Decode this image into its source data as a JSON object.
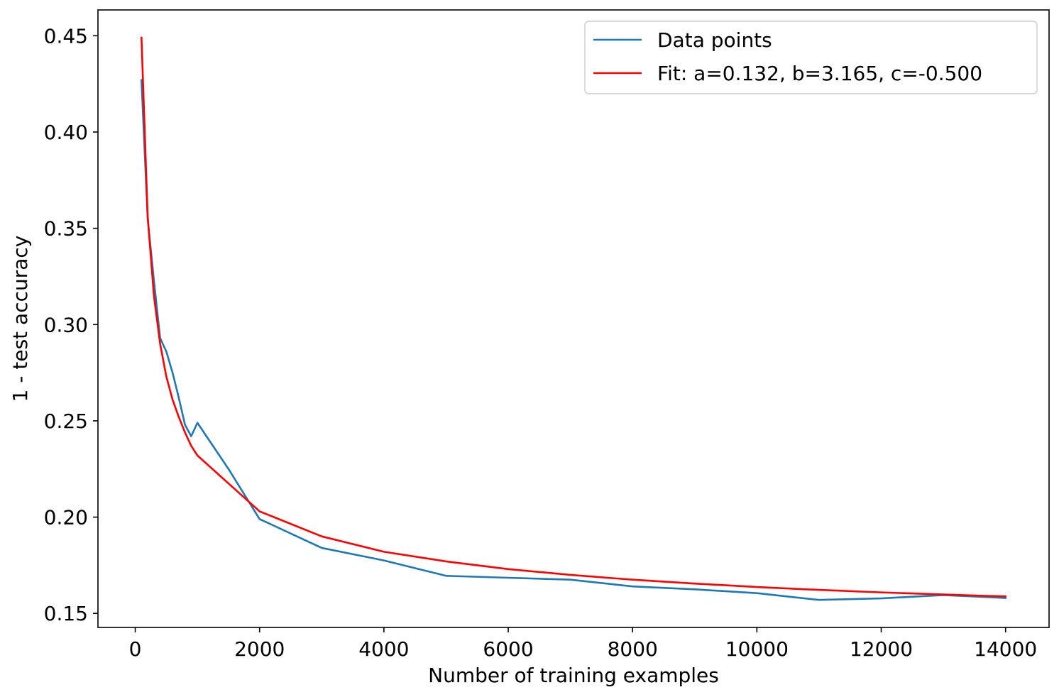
{
  "chart_data": {
    "type": "line",
    "title": "",
    "xlabel": "Number of training examples",
    "ylabel": "1 - test accuracy",
    "xlim": [
      -600,
      14700
    ],
    "ylim": [
      0.1427,
      0.4634
    ],
    "xticks": [
      0,
      2000,
      4000,
      6000,
      8000,
      10000,
      12000,
      14000
    ],
    "yticks": [
      0.15,
      0.2,
      0.25,
      0.3,
      0.35,
      0.4,
      0.45
    ],
    "xtick_labels": [
      "0",
      "2000",
      "4000",
      "6000",
      "8000",
      "10000",
      "12000",
      "14000"
    ],
    "ytick_labels": [
      "0.15",
      "0.20",
      "0.25",
      "0.30",
      "0.35",
      "0.40",
      "0.45"
    ],
    "grid": false,
    "legend_position": "top-right",
    "series": [
      {
        "name": "Data points",
        "color": "#1f77b4",
        "x": [
          100,
          200,
          300,
          400,
          500,
          600,
          700,
          800,
          900,
          1000,
          1500,
          2000,
          3000,
          4000,
          5000,
          6000,
          7000,
          8000,
          9000,
          10000,
          11000,
          12000,
          13000,
          14000
        ],
        "y": [
          0.427,
          0.355,
          0.323,
          0.293,
          0.286,
          0.275,
          0.262,
          0.248,
          0.242,
          0.249,
          0.225,
          0.199,
          0.184,
          0.1775,
          0.1695,
          0.1685,
          0.1675,
          0.164,
          0.1625,
          0.1605,
          0.157,
          0.1578,
          0.1595,
          0.158
        ]
      },
      {
        "name": "Fit: a=0.132, b=3.165, c=-0.500",
        "color": "#ff0000",
        "x": [
          100,
          200,
          300,
          400,
          500,
          600,
          700,
          800,
          900,
          1000,
          2000,
          3000,
          4000,
          5000,
          6000,
          7000,
          8000,
          9000,
          10000,
          11000,
          12000,
          13000,
          14000
        ],
        "y": [
          0.449,
          0.356,
          0.315,
          0.29,
          0.273,
          0.261,
          0.252,
          0.244,
          0.237,
          0.232,
          0.203,
          0.19,
          0.182,
          0.177,
          0.173,
          0.17,
          0.1675,
          0.1655,
          0.1637,
          0.1622,
          0.1609,
          0.1598,
          0.1588
        ]
      }
    ]
  }
}
